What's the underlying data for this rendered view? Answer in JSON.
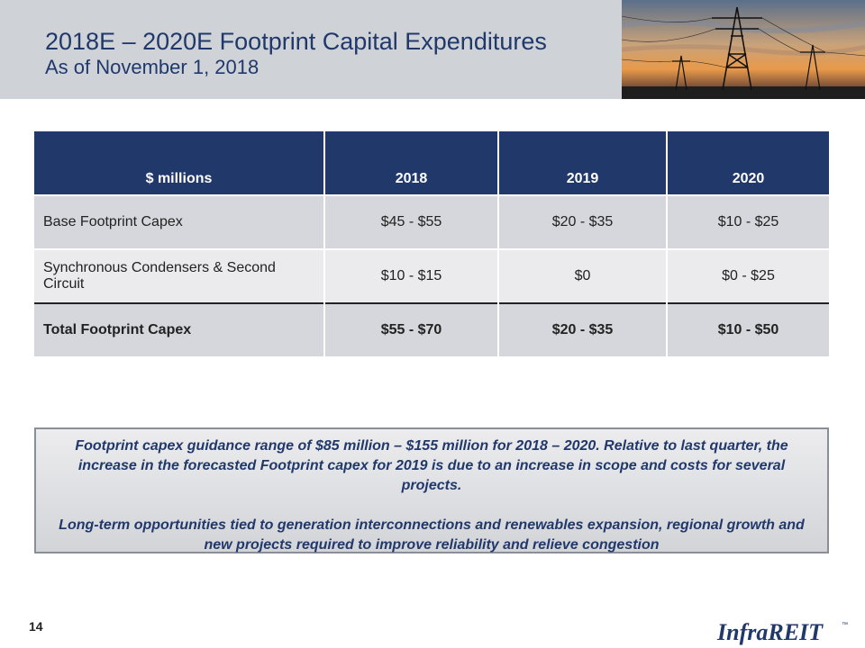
{
  "header": {
    "title": "2018E – 2020E Footprint Capital Expenditures",
    "subtitle": "As of November 1, 2018"
  },
  "table": {
    "columns": [
      "$ millions",
      "2018",
      "2019",
      "2020"
    ],
    "rows": [
      [
        "Base Footprint Capex",
        "$45 - $55",
        "$20 - $35",
        "$10 - $25"
      ],
      [
        "Synchronous Condensers & Second Circuit",
        "$10 - $15",
        "$0",
        "$0 - $25"
      ],
      [
        "Total Footprint Capex",
        "$55 - $70",
        "$20 - $35",
        "$10 - $50"
      ]
    ]
  },
  "callout": {
    "paragraph1": "Footprint capex guidance range of $85 million – $155 million for 2018 – 2020.  Relative to last quarter, the increase in the forecasted Footprint capex for 2019 is due to an increase in scope and costs for several projects.",
    "paragraph2": "Long-term opportunities tied to generation interconnections and renewables expansion, regional growth and new projects required to improve reliability and relieve congestion"
  },
  "footer": {
    "page_number": "14",
    "logo_text": "InfraREIT",
    "trademark": "™"
  },
  "colors": {
    "brand_navy": "#21386b",
    "header_gray": "#cfd3d8"
  }
}
